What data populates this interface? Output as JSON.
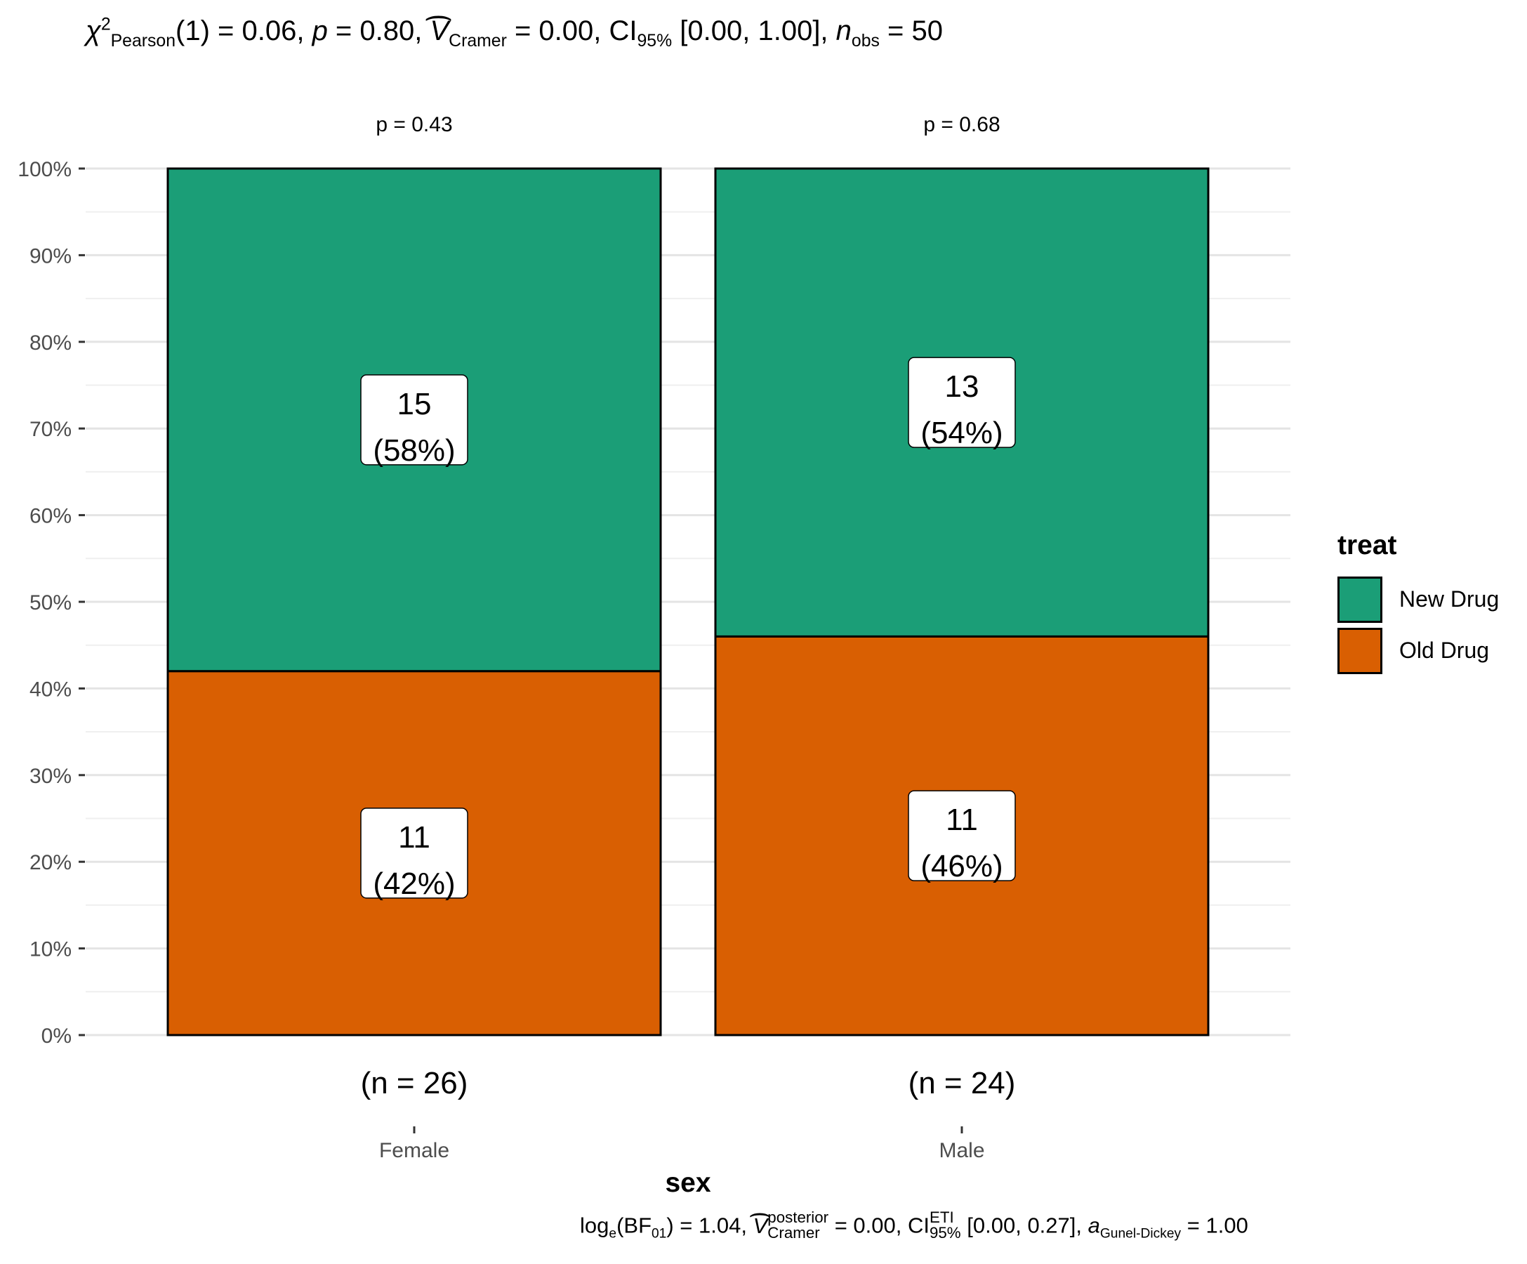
{
  "subtitle_top": {
    "chi": "χ",
    "chi_sup": "2",
    "chi_sub": "Pearson",
    "df_part": "(1) = 0.06, ",
    "p_symbol": "p",
    "p_part": " = 0.80, ",
    "v_symbol": "V",
    "v_sub": "Cramer",
    "v_part": " = 0.00, CI",
    "ci_sub": "95%",
    "ci_part": " [0.00, 1.00], ",
    "n_symbol": "n",
    "n_sub": "obs",
    "n_part": " = 50"
  },
  "caption_bottom": {
    "log_text": "log",
    "log_sub": "e",
    "bf_text": "(BF",
    "bf_sub": "01",
    "bf_part": ") = 1.04, ",
    "v_symbol": "V",
    "v_sup": "posterior",
    "v_sub": "Cramer",
    "v_part": " = 0.00, CI",
    "ci_sup": "ETI",
    "ci_sub": "95%",
    "ci_part": " [0.00, 0.27], ",
    "a_symbol": "a",
    "a_sub": "Gunel-Dickey",
    "a_part": " = 1.00"
  },
  "chart_data": {
    "type": "bar",
    "stacked": true,
    "percent": true,
    "categories": [
      "Female",
      "Male"
    ],
    "category_n_labels": [
      "(n = 26)",
      "(n = 24)"
    ],
    "category_p_labels": [
      "p = 0.43",
      "p = 0.68"
    ],
    "series": [
      {
        "name": "Old Drug",
        "counts": [
          11,
          11
        ],
        "values": [
          42,
          46
        ],
        "labels": [
          "11",
          "11"
        ],
        "pct_labels": [
          "(42%)",
          "(46%)"
        ],
        "color": "#D95F02"
      },
      {
        "name": "New Drug",
        "counts": [
          15,
          13
        ],
        "values": [
          58,
          54
        ],
        "labels": [
          "15",
          "13"
        ],
        "pct_labels": [
          "(58%)",
          "(54%)"
        ],
        "color": "#1B9E77"
      }
    ],
    "xlabel": "sex",
    "ylabel": "",
    "ylim": [
      0,
      100
    ],
    "yticks": [
      0,
      10,
      20,
      30,
      40,
      50,
      60,
      70,
      80,
      90,
      100
    ],
    "ytick_labels": [
      "0%",
      "10%",
      "20%",
      "30%",
      "40%",
      "50%",
      "60%",
      "70%",
      "80%",
      "90%",
      "100%"
    ],
    "grid": true,
    "legend": {
      "title": "treat",
      "placement": "right",
      "order": [
        "New Drug",
        "Old Drug"
      ]
    }
  }
}
